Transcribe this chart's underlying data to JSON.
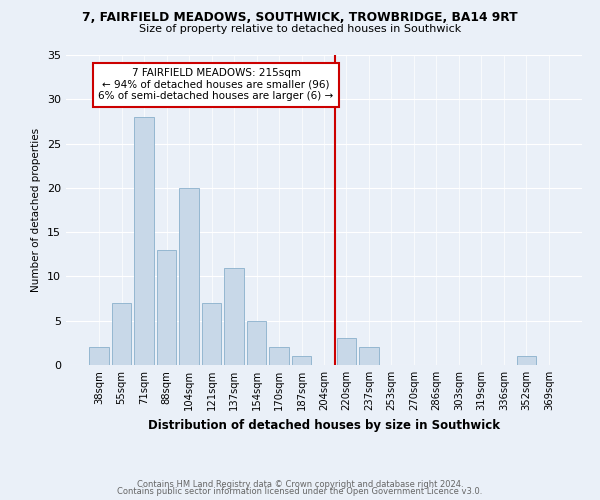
{
  "title1": "7, FAIRFIELD MEADOWS, SOUTHWICK, TROWBRIDGE, BA14 9RT",
  "title2": "Size of property relative to detached houses in Southwick",
  "xlabel": "Distribution of detached houses by size in Southwick",
  "ylabel": "Number of detached properties",
  "categories": [
    "38sqm",
    "55sqm",
    "71sqm",
    "88sqm",
    "104sqm",
    "121sqm",
    "137sqm",
    "154sqm",
    "170sqm",
    "187sqm",
    "204sqm",
    "220sqm",
    "237sqm",
    "253sqm",
    "270sqm",
    "286sqm",
    "303sqm",
    "319sqm",
    "336sqm",
    "352sqm",
    "369sqm"
  ],
  "values": [
    2,
    7,
    28,
    13,
    20,
    7,
    11,
    5,
    2,
    1,
    0,
    3,
    2,
    0,
    0,
    0,
    0,
    0,
    0,
    1,
    0
  ],
  "bar_color": "#c8d8e8",
  "bar_edge_color": "#8ab0cc",
  "vline_x_index": 11,
  "vline_color": "#cc0000",
  "annotation_text": "7 FAIRFIELD MEADOWS: 215sqm\n← 94% of detached houses are smaller (96)\n6% of semi-detached houses are larger (6) →",
  "annotation_box_color": "#ffffff",
  "annotation_box_edge": "#cc0000",
  "ylim": [
    0,
    35
  ],
  "yticks": [
    0,
    5,
    10,
    15,
    20,
    25,
    30,
    35
  ],
  "background_color": "#eaf0f8",
  "footer1": "Contains HM Land Registry data © Crown copyright and database right 2024.",
  "footer2": "Contains public sector information licensed under the Open Government Licence v3.0."
}
